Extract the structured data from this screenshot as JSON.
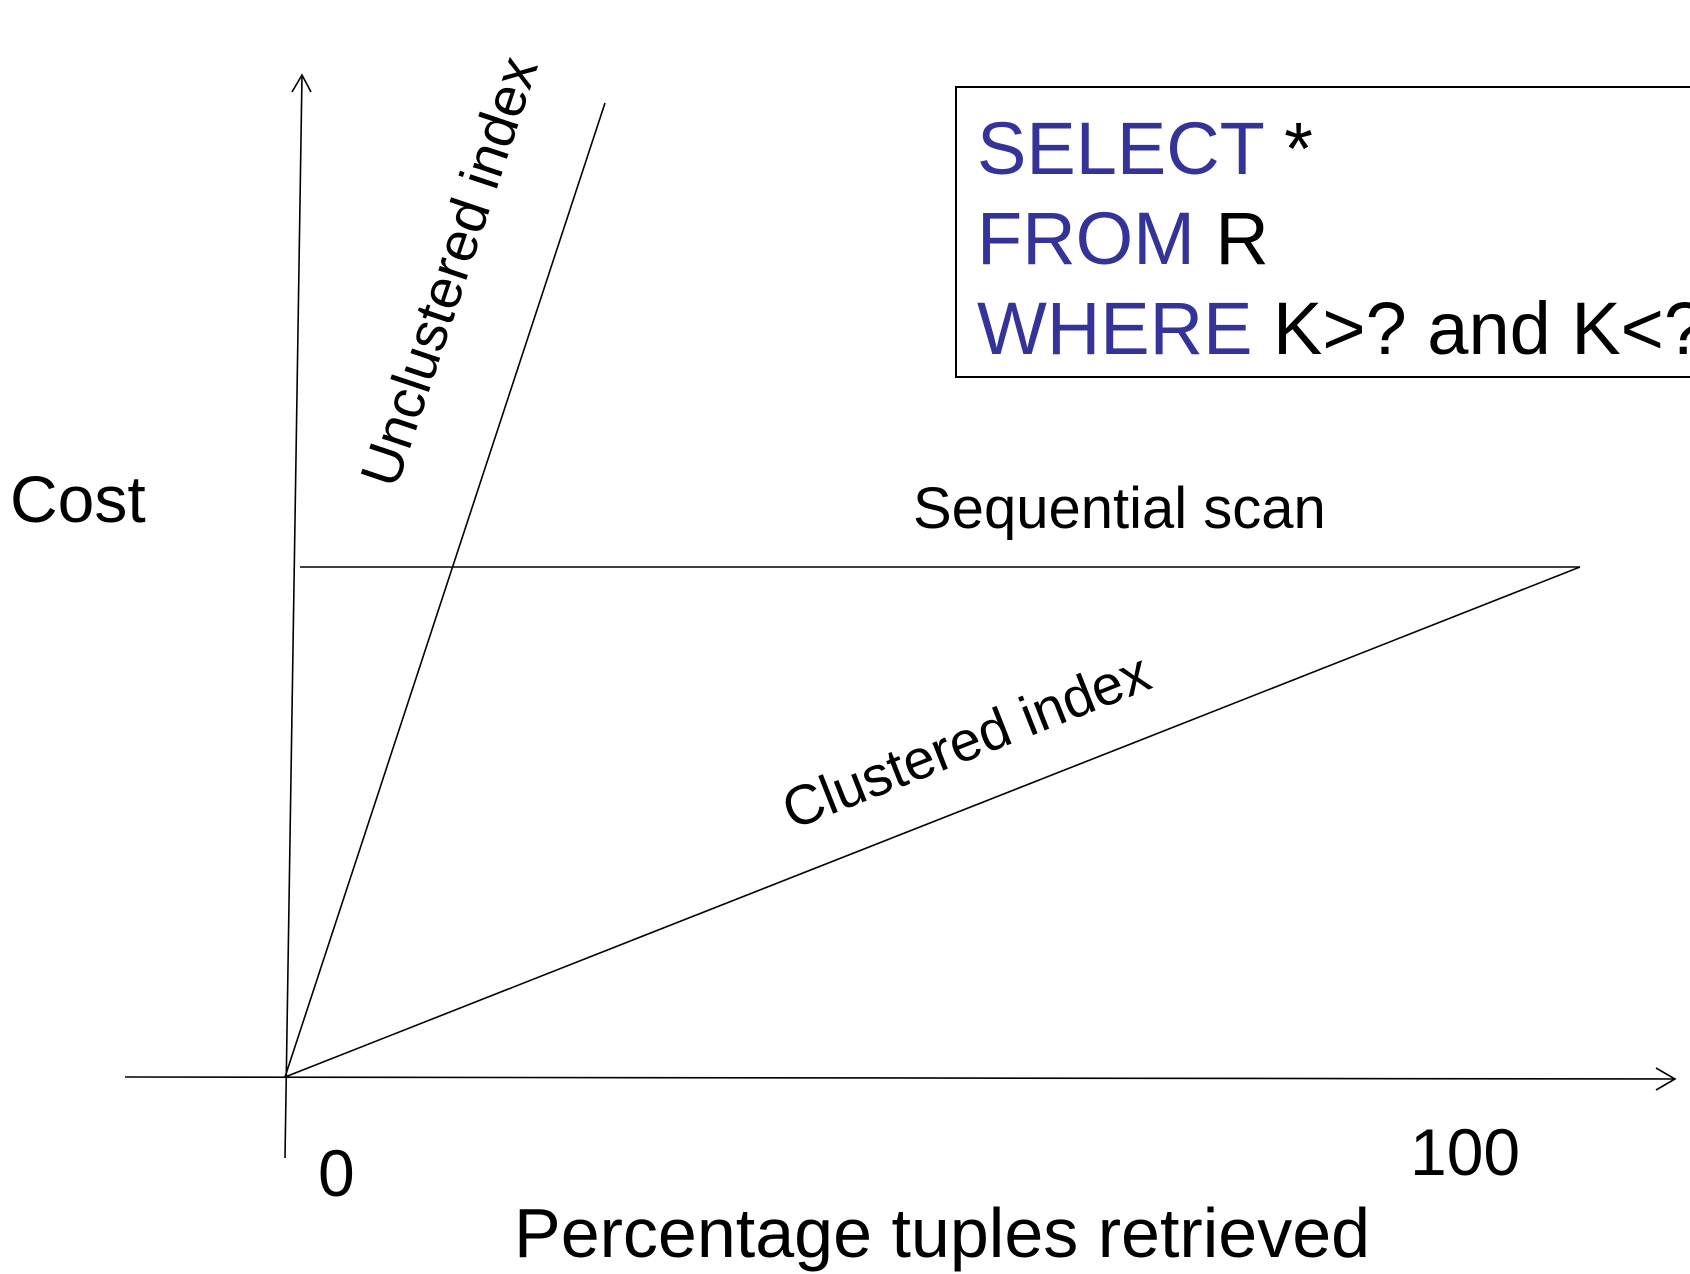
{
  "axes": {
    "y_label": "Cost",
    "x_label": "Percentage tuples retrieved",
    "x_tick_start": "0",
    "x_tick_end": "100"
  },
  "lines": {
    "unclustered_label": "Unclustered index",
    "sequential_label": "Sequential scan",
    "clustered_label": "Clustered index"
  },
  "query": {
    "line1_keyword": "SELECT",
    "line1_rest": " *",
    "line2_keyword": "FROM",
    "line2_rest": " R",
    "line3_keyword": "WHERE",
    "line3_rest": " K>? and K<?"
  },
  "colors": {
    "keyword": "#333399",
    "text": "#000000",
    "background": "#ffffff"
  }
}
